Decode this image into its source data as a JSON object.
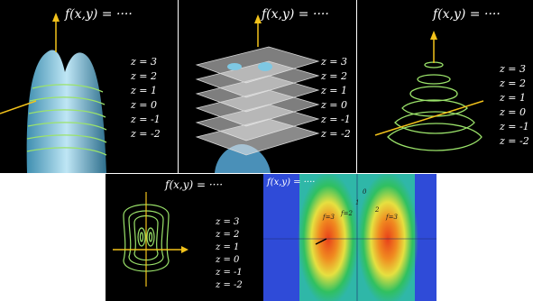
{
  "panels": [
    {
      "id": "surface",
      "function_label": "f(x,y) = ····",
      "levels": [
        "z = 3",
        "z = 2",
        "z = 1",
        "z = 0",
        "z = -1",
        "z = -2"
      ]
    },
    {
      "id": "slicing-planes",
      "function_label": "f(x,y) = ····",
      "levels": [
        "z = 3",
        "z = 2",
        "z = 1",
        "z = 0",
        "z = -1",
        "z = -2"
      ]
    },
    {
      "id": "lifted-contours",
      "function_label": "f(x,y) = ····",
      "levels": [
        "z = 3",
        "z = 2",
        "z = 1",
        "z = 0",
        "z = -1",
        "z = -2"
      ]
    },
    {
      "id": "contour-map",
      "function_label": "f(x,y) = ····",
      "levels": [
        "z = 3",
        "z = 2",
        "z = 1",
        "z = 0",
        "z = -1",
        "z = -2"
      ]
    },
    {
      "id": "heatmap",
      "function_label": "f(x,y) = ····",
      "annotations": [
        "f=3",
        "f=2",
        "1",
        "2",
        "f=3",
        "0"
      ]
    }
  ],
  "colors": {
    "background": "#000000",
    "surface": "#7ec8e3",
    "contour": "#9be36a",
    "axis": "#f2c21b",
    "heat_blue": "#2f4bd8",
    "heat_green": "#30c060",
    "heat_yellow": "#e6e040",
    "heat_red": "#e8401a"
  }
}
